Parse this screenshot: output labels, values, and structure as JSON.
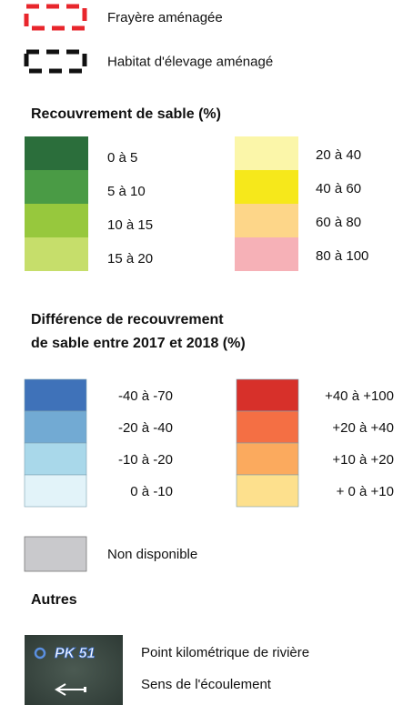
{
  "legend_lines": [
    {
      "label": "Frayère aménagée",
      "color": "#e8262c"
    },
    {
      "label": "Habitat d'élevage aménagé",
      "color": "#111111"
    }
  ],
  "sand_cover": {
    "title": "Recouvrement de sable (%)",
    "classes": [
      {
        "label": "0 à 5",
        "color": "#2b6e3b"
      },
      {
        "label": "5 à 10",
        "color": "#4a9b45"
      },
      {
        "label": "10 à 15",
        "color": "#97c83d"
      },
      {
        "label": "15 à 20",
        "color": "#c6de6b"
      },
      {
        "label": "20 à 40",
        "color": "#fbf6a9"
      },
      {
        "label": "40 à 60",
        "color": "#f6e81b"
      },
      {
        "label": "60 à 80",
        "color": "#fdd689"
      },
      {
        "label": "80 à 100",
        "color": "#f6b1b7"
      }
    ]
  },
  "sand_difference": {
    "title": [
      "Différence de recouvrement",
      "de sable entre 2017 et 2018 (%)"
    ],
    "classes": [
      {
        "label": "-40 à -70",
        "color": "#3f72b9"
      },
      {
        "label": "-20 à -40",
        "color": "#72aad3"
      },
      {
        "label": "-10 à -20",
        "color": "#a9d8ea"
      },
      {
        "label": "0 à -10",
        "color": "#e2f3f9"
      },
      {
        "label": "+40 à +100",
        "color": "#d7302a"
      },
      {
        "label": "+20 à +40",
        "color": "#f46f44"
      },
      {
        "label": "+10 à +20",
        "color": "#fbaa5e"
      },
      {
        "label": "+ 0 à +10",
        "color": "#fde08d"
      }
    ]
  },
  "unavailable": {
    "label": "Non disponible",
    "color": "#c9c9cc"
  },
  "others": {
    "title": "Autres",
    "badge": "PK 51",
    "items": [
      "Point kilométrique de rivière",
      "Sens de l'écoulement"
    ]
  }
}
